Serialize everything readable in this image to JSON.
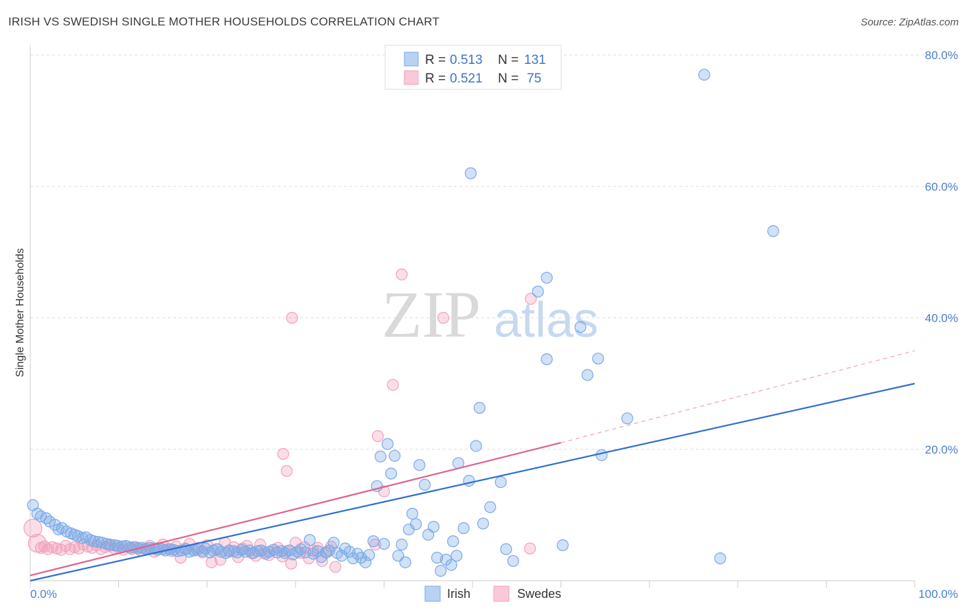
{
  "title": "IRISH VS SWEDISH SINGLE MOTHER HOUSEHOLDS CORRELATION CHART",
  "source": "Source: ZipAtlas.com",
  "colors": {
    "irish": "#7aaae6",
    "irish_line": "#2f6fcf",
    "swedes": "#f2a0bb",
    "swedes_line": "#e0618e",
    "tick": "#4a7fd0",
    "grid": "#dddddd"
  },
  "legend": {
    "irish": {
      "r_label": "R = ",
      "r": "0.513",
      "n_label": "N = ",
      "n": "131"
    },
    "swedes": {
      "r_label": "R = ",
      "r": "0.521",
      "n_label": "N = ",
      "n": "75"
    }
  },
  "chart_data": {
    "type": "scatter",
    "ylabel": "Single Mother Households",
    "xlim": [
      0,
      100
    ],
    "ylim": [
      0,
      80
    ],
    "x_tick_labels": [
      "0.0%",
      "100.0%"
    ],
    "y_ticks": [
      20,
      40,
      60,
      80
    ],
    "y_tick_labels": [
      "20.0%",
      "40.0%",
      "60.0%",
      "80.0%"
    ],
    "grid": "horizontal dashed",
    "legend_position": "top-center",
    "series": [
      {
        "name": "Irish",
        "trend": {
          "x0": 0,
          "y0": 0.0,
          "x1": 100,
          "y1": 30.0
        },
        "points": [
          [
            0.3,
            11.5
          ],
          [
            0.8,
            10.2
          ],
          [
            1.2,
            9.8
          ],
          [
            1.8,
            9.5
          ],
          [
            2.2,
            9.0
          ],
          [
            2.8,
            8.5
          ],
          [
            3.2,
            7.8
          ],
          [
            3.6,
            8.0
          ],
          [
            4.1,
            7.5
          ],
          [
            4.6,
            7.2
          ],
          [
            5.0,
            7.0
          ],
          [
            5.4,
            6.8
          ],
          [
            5.9,
            6.5
          ],
          [
            6.3,
            6.6
          ],
          [
            6.8,
            6.2
          ],
          [
            7.2,
            6.0
          ],
          [
            7.7,
            5.9
          ],
          [
            8.1,
            5.8
          ],
          [
            8.6,
            5.6
          ],
          [
            9.0,
            5.5
          ],
          [
            9.5,
            5.4
          ],
          [
            9.9,
            5.3
          ],
          [
            10.4,
            5.2
          ],
          [
            10.8,
            5.3
          ],
          [
            11.3,
            5.0
          ],
          [
            11.7,
            5.1
          ],
          [
            12.2,
            4.9
          ],
          [
            12.6,
            5.0
          ],
          [
            13.1,
            4.8
          ],
          [
            13.5,
            5.0
          ],
          [
            14.0,
            4.9
          ],
          [
            14.4,
            4.7
          ],
          [
            14.9,
            4.8
          ],
          [
            15.3,
            4.6
          ],
          [
            15.8,
            4.8
          ],
          [
            16.2,
            4.7
          ],
          [
            16.7,
            4.5
          ],
          [
            17.1,
            4.6
          ],
          [
            17.6,
            4.8
          ],
          [
            18.0,
            4.4
          ],
          [
            18.5,
            4.6
          ],
          [
            18.9,
            4.7
          ],
          [
            19.4,
            4.5
          ],
          [
            19.8,
            4.9
          ],
          [
            20.3,
            4.3
          ],
          [
            20.7,
            4.6
          ],
          [
            21.2,
            4.8
          ],
          [
            21.6,
            4.4
          ],
          [
            22.1,
            4.2
          ],
          [
            22.5,
            4.6
          ],
          [
            23.0,
            4.5
          ],
          [
            23.4,
            4.3
          ],
          [
            23.9,
            4.7
          ],
          [
            24.3,
            4.4
          ],
          [
            24.8,
            4.6
          ],
          [
            25.2,
            4.2
          ],
          [
            25.7,
            4.5
          ],
          [
            26.1,
            4.6
          ],
          [
            26.6,
            4.1
          ],
          [
            27.0,
            4.4
          ],
          [
            27.5,
            4.7
          ],
          [
            27.9,
            4.3
          ],
          [
            28.4,
            4.5
          ],
          [
            28.8,
            4.2
          ],
          [
            29.3,
            4.6
          ],
          [
            29.7,
            4.0
          ],
          [
            30.2,
            4.4
          ],
          [
            30.6,
            4.8
          ],
          [
            31.1,
            4.3
          ],
          [
            31.6,
            6.2
          ],
          [
            32.0,
            4.1
          ],
          [
            32.5,
            4.5
          ],
          [
            32.9,
            3.6
          ],
          [
            33.4,
            4.3
          ],
          [
            33.8,
            4.6
          ],
          [
            34.3,
            5.8
          ],
          [
            34.7,
            4.2
          ],
          [
            35.2,
            3.8
          ],
          [
            35.6,
            4.9
          ],
          [
            36.1,
            4.4
          ],
          [
            36.5,
            3.4
          ],
          [
            37.0,
            4.1
          ],
          [
            37.4,
            3.5
          ],
          [
            37.9,
            2.8
          ],
          [
            38.3,
            3.9
          ],
          [
            38.8,
            6.0
          ],
          [
            39.2,
            14.4
          ],
          [
            39.6,
            18.9
          ],
          [
            40.0,
            5.6
          ],
          [
            40.4,
            20.8
          ],
          [
            40.8,
            16.3
          ],
          [
            41.2,
            19.0
          ],
          [
            41.6,
            3.8
          ],
          [
            42.0,
            5.5
          ],
          [
            42.4,
            2.8
          ],
          [
            42.8,
            7.8
          ],
          [
            43.2,
            10.2
          ],
          [
            43.6,
            8.6
          ],
          [
            44.0,
            17.6
          ],
          [
            44.6,
            14.6
          ],
          [
            45.0,
            7.0
          ],
          [
            45.6,
            8.2
          ],
          [
            46.0,
            3.5
          ],
          [
            46.4,
            1.5
          ],
          [
            47.0,
            3.2
          ],
          [
            47.6,
            2.4
          ],
          [
            47.8,
            6.0
          ],
          [
            48.2,
            3.8
          ],
          [
            48.4,
            17.9
          ],
          [
            49.0,
            8.0
          ],
          [
            49.6,
            15.2
          ],
          [
            49.8,
            62.0
          ],
          [
            50.4,
            20.5
          ],
          [
            50.8,
            26.3
          ],
          [
            51.2,
            8.7
          ],
          [
            52.0,
            11.2
          ],
          [
            53.2,
            15.0
          ],
          [
            53.8,
            4.8
          ],
          [
            54.6,
            3.0
          ],
          [
            57.4,
            44.0
          ],
          [
            58.4,
            33.7
          ],
          [
            58.4,
            46.1
          ],
          [
            60.2,
            5.4
          ],
          [
            62.2,
            38.6
          ],
          [
            63.0,
            31.3
          ],
          [
            64.2,
            33.8
          ],
          [
            64.6,
            19.1
          ],
          [
            67.5,
            24.7
          ],
          [
            76.2,
            77.0
          ],
          [
            84.0,
            53.2
          ],
          [
            78.0,
            3.4
          ]
        ]
      },
      {
        "name": "Swedes",
        "trend": {
          "x0": 0,
          "y0": 0.8,
          "x1": 60,
          "y1": 21.0,
          "dash_x1": 100,
          "dash_y1": 35.0
        },
        "points": [
          [
            0.3,
            8.0
          ],
          [
            0.8,
            5.7
          ],
          [
            1.2,
            5.0
          ],
          [
            1.6,
            5.2
          ],
          [
            2.0,
            4.8
          ],
          [
            2.5,
            5.1
          ],
          [
            3.0,
            4.9
          ],
          [
            3.5,
            4.7
          ],
          [
            4.0,
            5.3
          ],
          [
            4.5,
            4.8
          ],
          [
            5.0,
            5.1
          ],
          [
            5.5,
            4.9
          ],
          [
            6.0,
            5.5
          ],
          [
            6.5,
            5.2
          ],
          [
            7.0,
            5.0
          ],
          [
            7.5,
            5.4
          ],
          [
            8.0,
            4.8
          ],
          [
            8.5,
            5.1
          ],
          [
            9.0,
            5.3
          ],
          [
            9.5,
            4.9
          ],
          [
            10.0,
            5.0
          ],
          [
            10.5,
            4.7
          ],
          [
            11.0,
            5.2
          ],
          [
            11.5,
            4.8
          ],
          [
            12.0,
            5.1
          ],
          [
            12.5,
            4.6
          ],
          [
            13.0,
            4.9
          ],
          [
            13.5,
            5.3
          ],
          [
            14.0,
            4.4
          ],
          [
            14.5,
            5.0
          ],
          [
            15.0,
            5.5
          ],
          [
            15.5,
            4.8
          ],
          [
            16.0,
            4.5
          ],
          [
            16.5,
            5.2
          ],
          [
            17.0,
            3.5
          ],
          [
            17.5,
            4.9
          ],
          [
            18.0,
            5.6
          ],
          [
            18.5,
            4.6
          ],
          [
            19.0,
            5.0
          ],
          [
            19.5,
            4.3
          ],
          [
            20.0,
            5.4
          ],
          [
            20.5,
            2.8
          ],
          [
            21.0,
            4.8
          ],
          [
            21.5,
            3.2
          ],
          [
            22.0,
            5.8
          ],
          [
            22.5,
            4.4
          ],
          [
            23.0,
            5.1
          ],
          [
            23.5,
            3.6
          ],
          [
            24.0,
            4.9
          ],
          [
            24.5,
            5.3
          ],
          [
            25.0,
            4.2
          ],
          [
            25.5,
            3.8
          ],
          [
            26.0,
            5.5
          ],
          [
            26.5,
            4.4
          ],
          [
            27.0,
            3.9
          ],
          [
            27.5,
            4.7
          ],
          [
            28.0,
            5.0
          ],
          [
            28.5,
            3.7
          ],
          [
            29.0,
            4.5
          ],
          [
            29.5,
            2.6
          ],
          [
            30.0,
            5.8
          ],
          [
            30.5,
            4.2
          ],
          [
            31.0,
            5.1
          ],
          [
            31.5,
            3.4
          ],
          [
            32.0,
            4.6
          ],
          [
            32.5,
            5.0
          ],
          [
            33.0,
            3.0
          ],
          [
            33.5,
            4.3
          ],
          [
            34.0,
            5.2
          ],
          [
            34.5,
            2.1
          ],
          [
            39.3,
            22.0
          ],
          [
            40.0,
            13.6
          ],
          [
            41.0,
            29.8
          ],
          [
            42.0,
            46.6
          ],
          [
            46.7,
            40.0
          ]
        ]
      }
    ],
    "extra_swedes_points": [
      [
        29.6,
        40.0
      ],
      [
        28.6,
        19.3
      ],
      [
        29.0,
        16.7
      ],
      [
        56.6,
        42.9
      ],
      [
        56.5,
        4.9
      ],
      [
        39.0,
        5.5
      ]
    ]
  },
  "bottom_legend": {
    "irish": "Irish",
    "swedes": "Swedes"
  },
  "watermark": {
    "zip": "ZIP",
    "atlas": "atlas"
  }
}
